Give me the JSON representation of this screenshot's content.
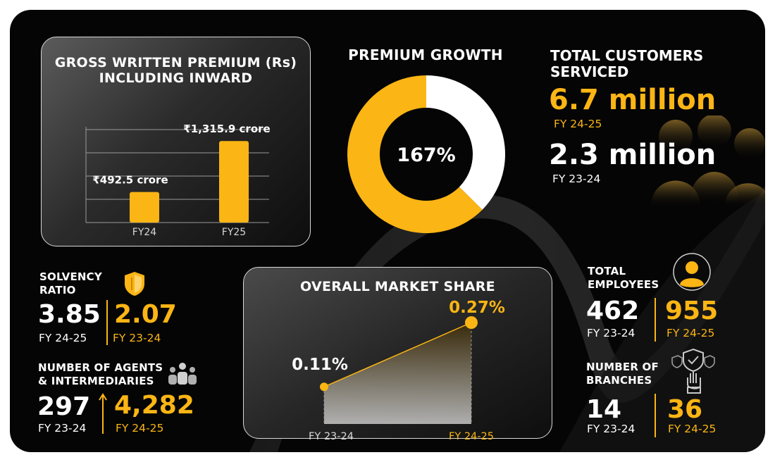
{
  "colors": {
    "accent": "#fbb514",
    "background": "#050505",
    "text": "#ffffff"
  },
  "gwp": {
    "title_line1": "GROSS WRITTEN PREMIUM (Rs)",
    "title_line2": "INCLUDING INWARD",
    "chart_data": {
      "type": "bar",
      "categories": [
        "FY24",
        "FY25"
      ],
      "values": [
        492.5,
        1315.9
      ],
      "value_labels": [
        "₹492.5 crore",
        "₹1,315.9 crore"
      ],
      "title": "GROSS WRITTEN PREMIUM (Rs) INCLUDING INWARD",
      "ylim": [
        0,
        1500
      ],
      "grid": true
    }
  },
  "growth": {
    "title": "PREMIUM GROWTH",
    "center_label": "167%",
    "chart_data": {
      "type": "pie",
      "donut": true,
      "center_label": "167%",
      "slices": [
        {
          "value": 62.6,
          "color": "#fbb514"
        },
        {
          "value": 37.4,
          "color": "#ffffff"
        }
      ]
    }
  },
  "customers": {
    "title_line1": "TOTAL CUSTOMERS",
    "title_line2": "SERVICED",
    "current_value": "6.7 million",
    "current_label": "FY 24-25",
    "previous_value": "2.3 million",
    "previous_label": "FY 23-24"
  },
  "solvency": {
    "label_line1": "SOLVENCY",
    "label_line2": "RATIO",
    "icon": "shield-icon",
    "value_1": "3.85",
    "year_1": "FY 24-25",
    "value_2": "2.07",
    "year_2": "FY 23-24"
  },
  "agents": {
    "label_line1": "NUMBER OF AGENTS",
    "label_line2": "& INTERMEDIARIES",
    "icon": "people-group-icon",
    "value_1": "297",
    "year_1": "FY 23-24",
    "value_2": "4,282",
    "year_2": "FY 24-25"
  },
  "market": {
    "title": "OVERALL MARKET SHARE",
    "chart_data": {
      "type": "line",
      "categories": [
        "FY 23-24",
        "FY 24-25"
      ],
      "values": [
        0.11,
        0.27
      ],
      "value_labels": [
        "0.11%",
        "0.27%"
      ],
      "title": "OVERALL MARKET SHARE",
      "ylim": [
        0,
        0.3
      ]
    }
  },
  "employees": {
    "label_line1": "TOTAL",
    "label_line2": "EMPLOYEES",
    "icon": "user-avatar-icon",
    "value_1": "462",
    "year_1": "FY 23-24",
    "value_2": "955",
    "year_2": "FY 24-25"
  },
  "branches": {
    "label_line1": "NUMBER OF",
    "label_line2": "BRANCHES",
    "icon": "hand-shield-icon",
    "value_1": "14",
    "year_1": "FY 23-24",
    "value_2": "36",
    "year_2": "FY 24-25"
  }
}
